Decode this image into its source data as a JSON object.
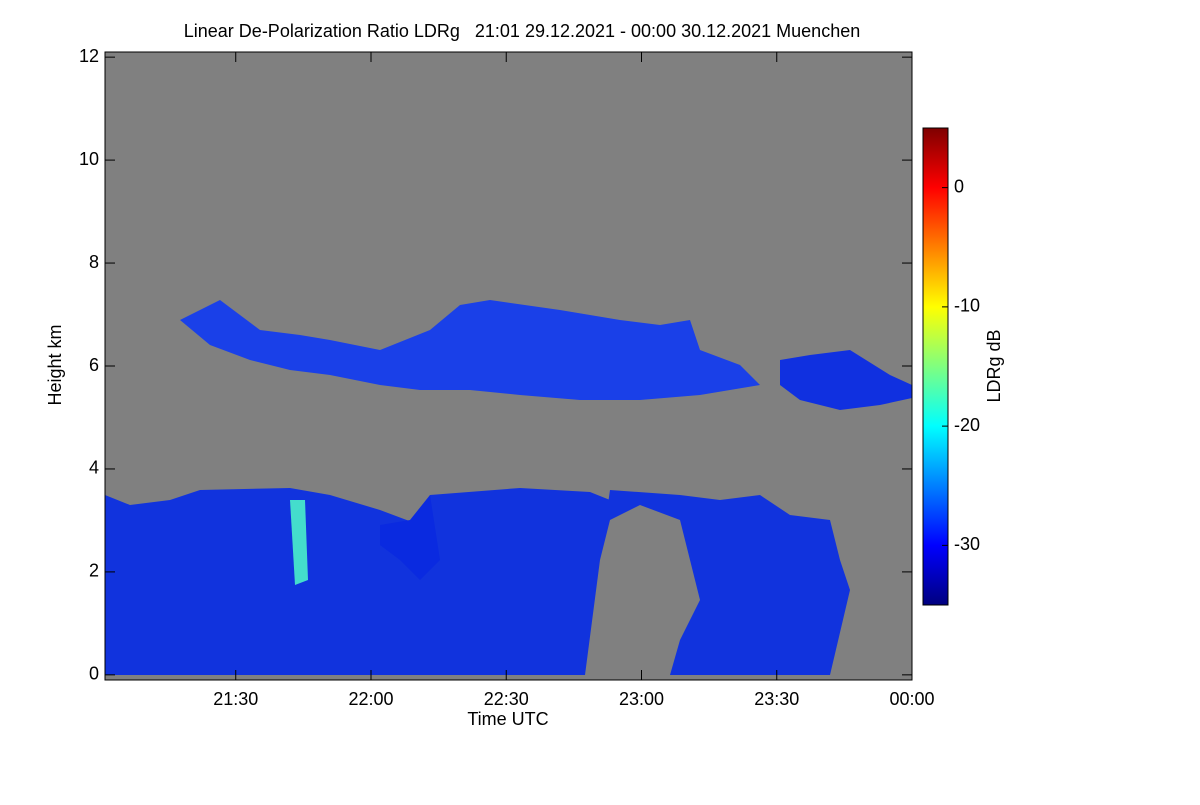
{
  "chart_data": {
    "type": "heatmap",
    "title": "Linear De-Polarization Ratio LDRg   21:01 29.12.2021 - 00:00 30.12.2021 Muenchen",
    "x_label": "Time UTC",
    "y_label": "Height km",
    "colorbar_label": "LDRg dB",
    "xlim": [
      21.0167,
      24
    ],
    "xticks": [
      {
        "value": 21.5,
        "label": "21:30"
      },
      {
        "value": 22,
        "label": "22:00"
      },
      {
        "value": 22.5,
        "label": "22:30"
      },
      {
        "value": 23,
        "label": "23:00"
      },
      {
        "value": 23.5,
        "label": "23:30"
      },
      {
        "value": 24,
        "label": "00:00"
      }
    ],
    "ylim": [
      -0.1,
      12.1
    ],
    "yticks": [
      0,
      2,
      4,
      6,
      8,
      10,
      12
    ],
    "clim": [
      -35,
      5
    ],
    "cticks": [
      0,
      -10,
      -20,
      -30
    ],
    "colormap": "jet",
    "background_color": "#808080"
  }
}
